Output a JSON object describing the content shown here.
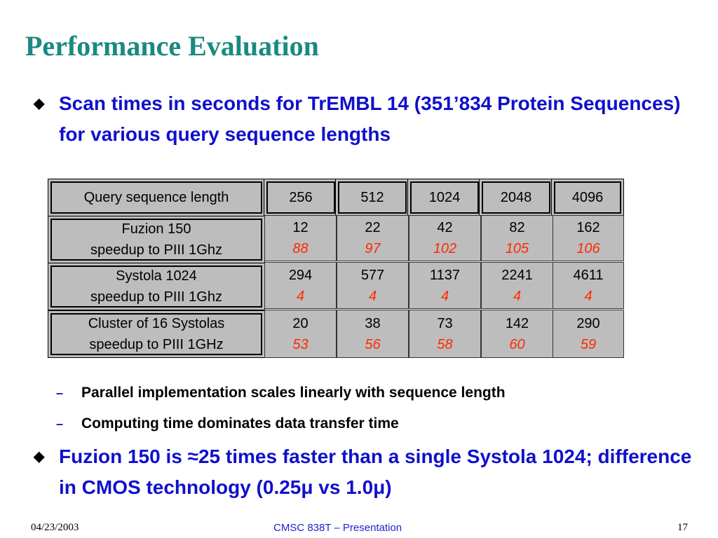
{
  "title": "Performance Evaluation",
  "bullets": [
    {
      "icon": "diamond-bullet-icon",
      "text": "Scan times in seconds for TrEMBL 14 (351’834 Protein Sequences) for various query sequence lengths"
    },
    {
      "icon": "diamond-bullet-icon",
      "text": "Fuzion 150 is ≈25 times faster than a single Systola 1024; difference in CMOS technology (0.25μ vs 1.0μ)"
    }
  ],
  "sub_bullets": [
    {
      "icon": "dash-bullet-icon",
      "text": "Parallel implementation scales linearly with sequence length"
    },
    {
      "icon": "dash-bullet-icon",
      "text": "Computing time dominates data transfer time"
    }
  ],
  "table": {
    "header_label": "Query sequence length",
    "columns": [
      "256",
      "512",
      "1024",
      "2048",
      "4096"
    ],
    "rows": [
      {
        "label1": "Fuzion 150",
        "label2": "speedup to PIII 1Ghz",
        "times": [
          "12",
          "22",
          "42",
          "82",
          "162"
        ],
        "speedups": [
          "88",
          "97",
          "102",
          "105",
          "106"
        ]
      },
      {
        "label1": "Systola 1024",
        "label2": "speedup to PIII 1Ghz",
        "times": [
          "294",
          "577",
          "1137",
          "2241",
          "4611"
        ],
        "speedups": [
          "4",
          "4",
          "4",
          "4",
          "4"
        ]
      },
      {
        "label1": "Cluster of 16 Systolas",
        "label2": "speedup to PIII 1GHz",
        "times": [
          "20",
          "38",
          "73",
          "142",
          "290"
        ],
        "speedups": [
          "53",
          "56",
          "58",
          "60",
          "59"
        ]
      }
    ]
  },
  "footer": {
    "date": "04/23/2003",
    "center": "CMSC 838T – Presentation",
    "page": "17"
  },
  "colors": {
    "title": "#1a8a82",
    "bullet": "#1010cc",
    "speedup": "#ff2a00",
    "table_bg": "#bdbdbd"
  }
}
